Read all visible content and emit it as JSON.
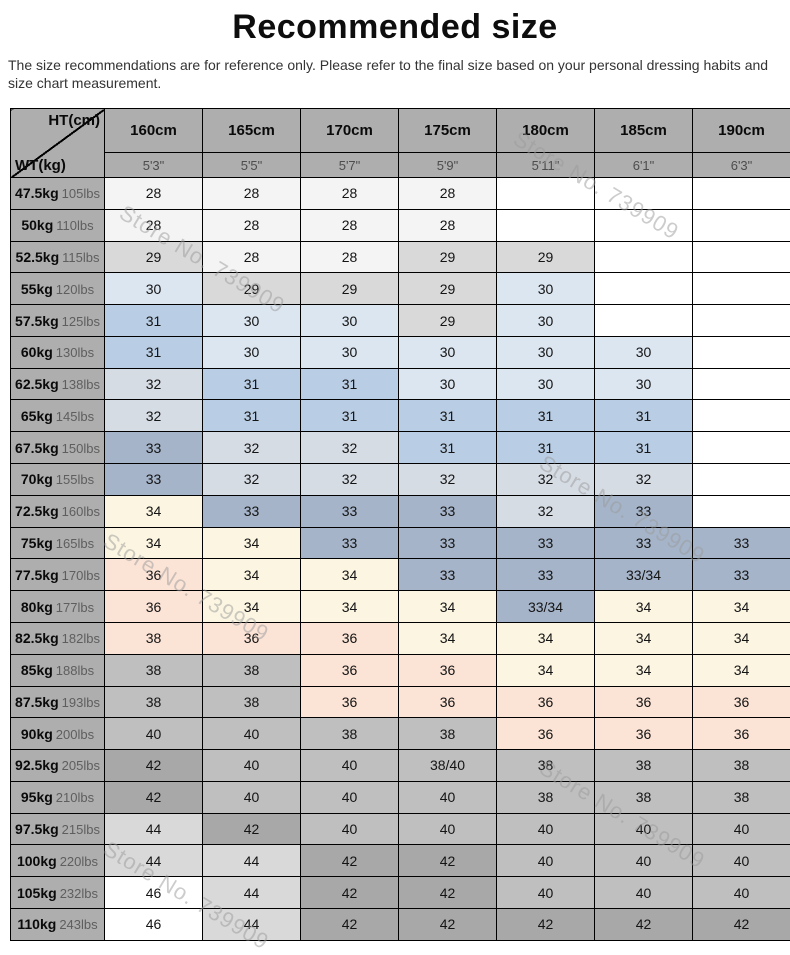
{
  "page": {
    "title": "Recommended size",
    "disclaimer": "The size recommendations are for reference only. Please refer to the final size based on your personal dressing habits and size chart measurement."
  },
  "watermark": {
    "text": "Store No. 739909"
  },
  "colors": {
    "header_bg": "#aeaeae",
    "none": "#ffffff",
    "off": "#f4f4f4",
    "ltg": "#d9d9d9",
    "b1": "#dce6f1",
    "b2": "#b9cde4",
    "bg": "#d6dce4",
    "st": "#a5b4c9",
    "cr": "#fbf5e1",
    "pk": "#fbe3d6",
    "g38": "#bfbfbf",
    "g42": "#a8a8a8",
    "g44": "#d9d9d9",
    "wh": "#ffffff",
    "watermark": "#9b9b9b"
  },
  "table": {
    "corner": {
      "top_label": "HT(cm)",
      "bottom_label": "WT(kg)"
    },
    "columns": [
      {
        "cm": "160cm",
        "ft": "5'3\""
      },
      {
        "cm": "165cm",
        "ft": "5'5\""
      },
      {
        "cm": "170cm",
        "ft": "5'7\""
      },
      {
        "cm": "175cm",
        "ft": "5'9\""
      },
      {
        "cm": "180cm",
        "ft": "5'11\""
      },
      {
        "cm": "185cm",
        "ft": "6'1\""
      },
      {
        "cm": "190cm",
        "ft": "6'3\""
      }
    ],
    "rows": [
      {
        "kg": "47.5kg",
        "lbs": "105lbs",
        "cells": [
          [
            "28",
            "off"
          ],
          [
            "28",
            "off"
          ],
          [
            "28",
            "off"
          ],
          [
            "28",
            "off"
          ],
          [
            "",
            "none"
          ],
          [
            "",
            "none"
          ],
          [
            "",
            "none"
          ]
        ]
      },
      {
        "kg": "50kg",
        "lbs": "110lbs",
        "cells": [
          [
            "28",
            "off"
          ],
          [
            "28",
            "off"
          ],
          [
            "28",
            "off"
          ],
          [
            "28",
            "off"
          ],
          [
            "",
            "none"
          ],
          [
            "",
            "none"
          ],
          [
            "",
            "none"
          ]
        ]
      },
      {
        "kg": "52.5kg",
        "lbs": "115lbs",
        "cells": [
          [
            "29",
            "ltg"
          ],
          [
            "28",
            "off"
          ],
          [
            "28",
            "off"
          ],
          [
            "29",
            "ltg"
          ],
          [
            "29",
            "ltg"
          ],
          [
            "",
            "none"
          ],
          [
            "",
            "none"
          ]
        ]
      },
      {
        "kg": "55kg",
        "lbs": "120lbs",
        "cells": [
          [
            "30",
            "b1"
          ],
          [
            "29",
            "ltg"
          ],
          [
            "29",
            "ltg"
          ],
          [
            "29",
            "ltg"
          ],
          [
            "30",
            "b1"
          ],
          [
            "",
            "none"
          ],
          [
            "",
            "none"
          ]
        ]
      },
      {
        "kg": "57.5kg",
        "lbs": "125lbs",
        "cells": [
          [
            "31",
            "b2"
          ],
          [
            "30",
            "b1"
          ],
          [
            "30",
            "b1"
          ],
          [
            "29",
            "ltg"
          ],
          [
            "30",
            "b1"
          ],
          [
            "",
            "none"
          ],
          [
            "",
            "none"
          ]
        ]
      },
      {
        "kg": "60kg",
        "lbs": "130lbs",
        "cells": [
          [
            "31",
            "b2"
          ],
          [
            "30",
            "b1"
          ],
          [
            "30",
            "b1"
          ],
          [
            "30",
            "b1"
          ],
          [
            "30",
            "b1"
          ],
          [
            "30",
            "b1"
          ],
          [
            "",
            "none"
          ]
        ]
      },
      {
        "kg": "62.5kg",
        "lbs": "138lbs",
        "cells": [
          [
            "32",
            "bg"
          ],
          [
            "31",
            "b2"
          ],
          [
            "31",
            "b2"
          ],
          [
            "30",
            "b1"
          ],
          [
            "30",
            "b1"
          ],
          [
            "30",
            "b1"
          ],
          [
            "",
            "none"
          ]
        ]
      },
      {
        "kg": "65kg",
        "lbs": "145lbs",
        "cells": [
          [
            "32",
            "bg"
          ],
          [
            "31",
            "b2"
          ],
          [
            "31",
            "b2"
          ],
          [
            "31",
            "b2"
          ],
          [
            "31",
            "b2"
          ],
          [
            "31",
            "b2"
          ],
          [
            "",
            "none"
          ]
        ]
      },
      {
        "kg": "67.5kg",
        "lbs": "150lbs",
        "cells": [
          [
            "33",
            "st"
          ],
          [
            "32",
            "bg"
          ],
          [
            "32",
            "bg"
          ],
          [
            "31",
            "b2"
          ],
          [
            "31",
            "b2"
          ],
          [
            "31",
            "b2"
          ],
          [
            "",
            "none"
          ]
        ]
      },
      {
        "kg": "70kg",
        "lbs": "155lbs",
        "cells": [
          [
            "33",
            "st"
          ],
          [
            "32",
            "bg"
          ],
          [
            "32",
            "bg"
          ],
          [
            "32",
            "bg"
          ],
          [
            "32",
            "bg"
          ],
          [
            "32",
            "bg"
          ],
          [
            "",
            "none"
          ]
        ]
      },
      {
        "kg": "72.5kg",
        "lbs": "160lbs",
        "cells": [
          [
            "34",
            "cr"
          ],
          [
            "33",
            "st"
          ],
          [
            "33",
            "st"
          ],
          [
            "33",
            "st"
          ],
          [
            "32",
            "bg"
          ],
          [
            "33",
            "st"
          ],
          [
            "",
            "none"
          ]
        ]
      },
      {
        "kg": "75kg",
        "lbs": "165lbs",
        "cells": [
          [
            "34",
            "cr"
          ],
          [
            "34",
            "cr"
          ],
          [
            "33",
            "st"
          ],
          [
            "33",
            "st"
          ],
          [
            "33",
            "st"
          ],
          [
            "33",
            "st"
          ],
          [
            "33",
            "st"
          ]
        ]
      },
      {
        "kg": "77.5kg",
        "lbs": "170lbs",
        "cells": [
          [
            "36",
            "pk"
          ],
          [
            "34",
            "cr"
          ],
          [
            "34",
            "cr"
          ],
          [
            "33",
            "st"
          ],
          [
            "33",
            "st"
          ],
          [
            "33/34",
            "st"
          ],
          [
            "33",
            "st"
          ]
        ]
      },
      {
        "kg": "80kg",
        "lbs": "177lbs",
        "cells": [
          [
            "36",
            "pk"
          ],
          [
            "34",
            "cr"
          ],
          [
            "34",
            "cr"
          ],
          [
            "34",
            "cr"
          ],
          [
            "33/34",
            "st"
          ],
          [
            "34",
            "cr"
          ],
          [
            "34",
            "cr"
          ]
        ]
      },
      {
        "kg": "82.5kg",
        "lbs": "182lbs",
        "cells": [
          [
            "38",
            "pk"
          ],
          [
            "36",
            "pk"
          ],
          [
            "36",
            "pk"
          ],
          [
            "34",
            "cr"
          ],
          [
            "34",
            "cr"
          ],
          [
            "34",
            "cr"
          ],
          [
            "34",
            "cr"
          ]
        ]
      },
      {
        "kg": "85kg",
        "lbs": "188lbs",
        "cells": [
          [
            "38",
            "g38"
          ],
          [
            "38",
            "g38"
          ],
          [
            "36",
            "pk"
          ],
          [
            "36",
            "pk"
          ],
          [
            "34",
            "cr"
          ],
          [
            "34",
            "cr"
          ],
          [
            "34",
            "cr"
          ]
        ]
      },
      {
        "kg": "87.5kg",
        "lbs": "193lbs",
        "cells": [
          [
            "38",
            "g38"
          ],
          [
            "38",
            "g38"
          ],
          [
            "36",
            "pk"
          ],
          [
            "36",
            "pk"
          ],
          [
            "36",
            "pk"
          ],
          [
            "36",
            "pk"
          ],
          [
            "36",
            "pk"
          ]
        ]
      },
      {
        "kg": "90kg",
        "lbs": "200lbs",
        "cells": [
          [
            "40",
            "g38"
          ],
          [
            "40",
            "g38"
          ],
          [
            "38",
            "g38"
          ],
          [
            "38",
            "g38"
          ],
          [
            "36",
            "pk"
          ],
          [
            "36",
            "pk"
          ],
          [
            "36",
            "pk"
          ]
        ]
      },
      {
        "kg": "92.5kg",
        "lbs": "205lbs",
        "cells": [
          [
            "42",
            "g42"
          ],
          [
            "40",
            "g38"
          ],
          [
            "40",
            "g38"
          ],
          [
            "38/40",
            "g38"
          ],
          [
            "38",
            "g38"
          ],
          [
            "38",
            "g38"
          ],
          [
            "38",
            "g38"
          ]
        ]
      },
      {
        "kg": "95kg",
        "lbs": "210lbs",
        "cells": [
          [
            "42",
            "g42"
          ],
          [
            "40",
            "g38"
          ],
          [
            "40",
            "g38"
          ],
          [
            "40",
            "g38"
          ],
          [
            "38",
            "g38"
          ],
          [
            "38",
            "g38"
          ],
          [
            "38",
            "g38"
          ]
        ]
      },
      {
        "kg": "97.5kg",
        "lbs": "215lbs",
        "cells": [
          [
            "44",
            "g44"
          ],
          [
            "42",
            "g42"
          ],
          [
            "40",
            "g38"
          ],
          [
            "40",
            "g38"
          ],
          [
            "40",
            "g38"
          ],
          [
            "40",
            "g38"
          ],
          [
            "40",
            "g38"
          ]
        ]
      },
      {
        "kg": "100kg",
        "lbs": "220lbs",
        "cells": [
          [
            "44",
            "g44"
          ],
          [
            "44",
            "g44"
          ],
          [
            "42",
            "g42"
          ],
          [
            "42",
            "g42"
          ],
          [
            "40",
            "g38"
          ],
          [
            "40",
            "g38"
          ],
          [
            "40",
            "g38"
          ]
        ]
      },
      {
        "kg": "105kg",
        "lbs": "232lbs",
        "cells": [
          [
            "46",
            "wh"
          ],
          [
            "44",
            "g44"
          ],
          [
            "42",
            "g42"
          ],
          [
            "42",
            "g42"
          ],
          [
            "40",
            "g38"
          ],
          [
            "40",
            "g38"
          ],
          [
            "40",
            "g38"
          ]
        ]
      },
      {
        "kg": "110kg",
        "lbs": "243lbs",
        "cells": [
          [
            "46",
            "wh"
          ],
          [
            "44",
            "g44"
          ],
          [
            "42",
            "g42"
          ],
          [
            "42",
            "g42"
          ],
          [
            "42",
            "g42"
          ],
          [
            "42",
            "g42"
          ],
          [
            "42",
            "g42"
          ]
        ]
      }
    ]
  }
}
